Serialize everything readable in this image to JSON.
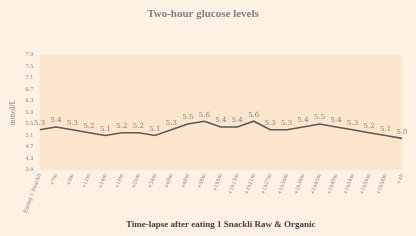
{
  "chart_data": {
    "type": "line",
    "title": "Two-hour glucose levels",
    "y_label": "mmol/L",
    "x_label": "Time-lapse after eating 1 Snackli Raw & Organic",
    "categories": [
      "Eating 1 Snackli",
      "+7m",
      "+9m",
      "+12m",
      "+14m",
      "+19m",
      "+25m",
      "+34m",
      "+40m",
      "+48m",
      "+58m",
      "+1h5m",
      "+1h13m",
      "+1h21m",
      "+1h27m",
      "+1h34m",
      "+1h38m",
      "+1h45m",
      "+1h49m",
      "+1h54m",
      "+1h56m",
      "+1h58m",
      "+2h"
    ],
    "values": [
      5.3,
      5.4,
      5.3,
      5.2,
      5.1,
      5.2,
      5.2,
      5.1,
      5.3,
      5.5,
      5.6,
      5.4,
      5.4,
      5.6,
      5.3,
      5.3,
      5.4,
      5.5,
      5.4,
      5.3,
      5.2,
      5.1,
      5.0
    ],
    "value_labels": [
      "5.3",
      "5.4",
      "5.3",
      "5.2",
      "5.1",
      "5.2",
      "5.2",
      "5.1",
      "5.3",
      "5.5",
      "5.6",
      "5.4",
      "5.4",
      "5.6",
      "5.3",
      "5.3",
      "5.4",
      "5.5",
      "5.4",
      "5.3",
      "5.2",
      "5.1",
      "5.0"
    ],
    "color": "#595959",
    "ylim": [
      3.9,
      7.9
    ],
    "yticks": [
      3.9,
      4.3,
      4.7,
      5.1,
      5.5,
      5.9,
      6.3,
      6.7,
      7.1,
      7.5,
      7.9
    ],
    "grid": false,
    "data_labels": true
  }
}
